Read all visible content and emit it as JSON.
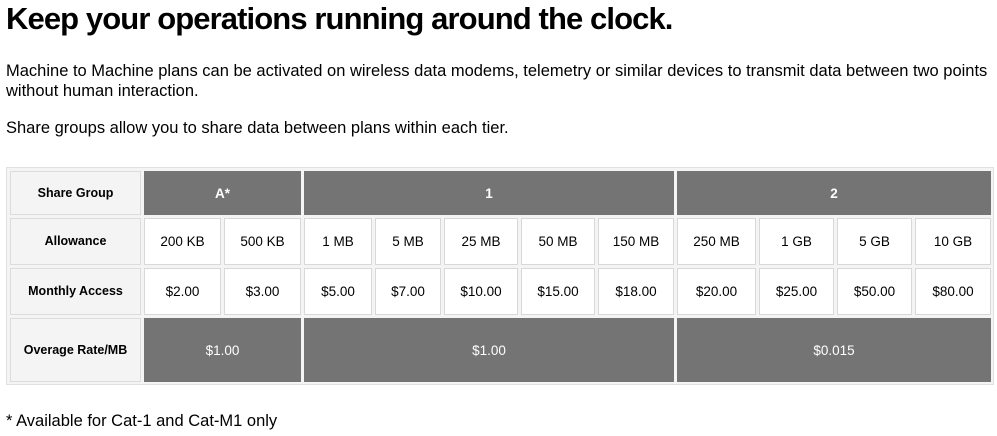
{
  "headline": "Keep your operations running around the clock.",
  "intro": "Machine to Machine plans can be activated on wireless data modems, telemetry or similar devices to transmit data between two points without human interaction.",
  "share_note": "Share groups allow you to share data between plans within each tier.",
  "table": {
    "row_labels": {
      "share_group": "Share Group",
      "allowance": "Allowance",
      "monthly_access": "Monthly Access",
      "overage": "Overage Rate/MB"
    },
    "groups": [
      {
        "name": "A*",
        "overage": "$1.00"
      },
      {
        "name": "1",
        "overage": "$1.00"
      },
      {
        "name": "2",
        "overage": "$0.015"
      }
    ],
    "plans": [
      {
        "allowance": "200 KB",
        "price": "$2.00"
      },
      {
        "allowance": "500 KB",
        "price": "$3.00"
      },
      {
        "allowance": "1 MB",
        "price": "$5.00"
      },
      {
        "allowance": "5 MB",
        "price": "$7.00"
      },
      {
        "allowance": "25 MB",
        "price": "$10.00"
      },
      {
        "allowance": "50 MB",
        "price": "$15.00"
      },
      {
        "allowance": "150 MB",
        "price": "$18.00"
      },
      {
        "allowance": "250 MB",
        "price": "$20.00"
      },
      {
        "allowance": "1 GB",
        "price": "$25.00"
      },
      {
        "allowance": "5 GB",
        "price": "$50.00"
      },
      {
        "allowance": "10 GB",
        "price": "$80.00"
      }
    ]
  },
  "footnote": "* Available for Cat-1 and Cat-M1 only"
}
